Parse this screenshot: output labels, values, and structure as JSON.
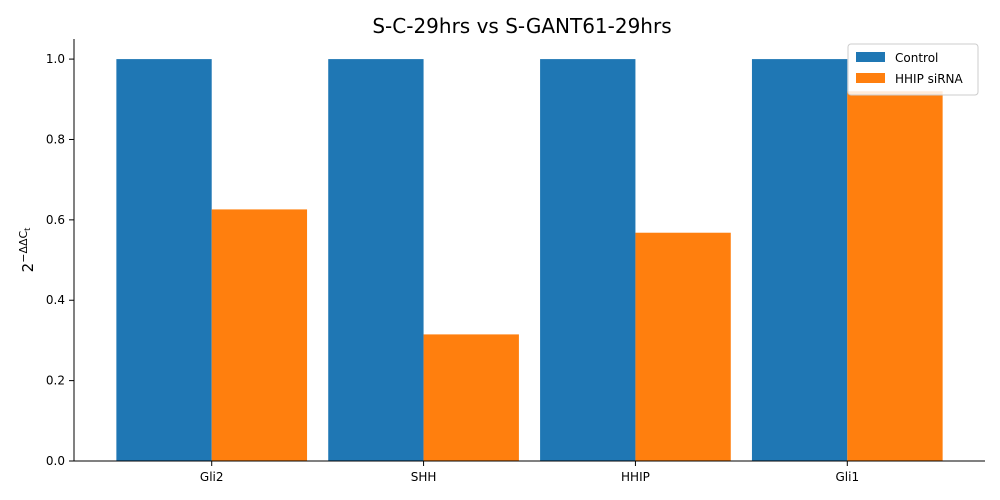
{
  "chart_data": {
    "type": "bar",
    "title": "S-C-29hrs vs S-GANT61-29hrs",
    "xlabel": "",
    "ylabel": "2^{−ΔΔC_t}",
    "ylabel_parts": {
      "base": "2",
      "exp": "−ΔΔC",
      "sub": "t"
    },
    "categories": [
      "Gli2",
      "SHH",
      "HHIP",
      "Gli1"
    ],
    "series": [
      {
        "name": "Control",
        "color": "#1f77b4",
        "values": [
          1.0,
          1.0,
          1.0,
          1.0
        ]
      },
      {
        "name": "HHIP siRNA",
        "color": "#ff7f0e",
        "values": [
          0.626,
          0.315,
          0.568,
          0.92
        ]
      }
    ],
    "ylim": [
      0,
      1.05
    ],
    "yticks": [
      "0.0",
      "0.2",
      "0.4",
      "0.6",
      "0.8",
      "1.0"
    ],
    "legend": "top-right",
    "grid": false
  }
}
